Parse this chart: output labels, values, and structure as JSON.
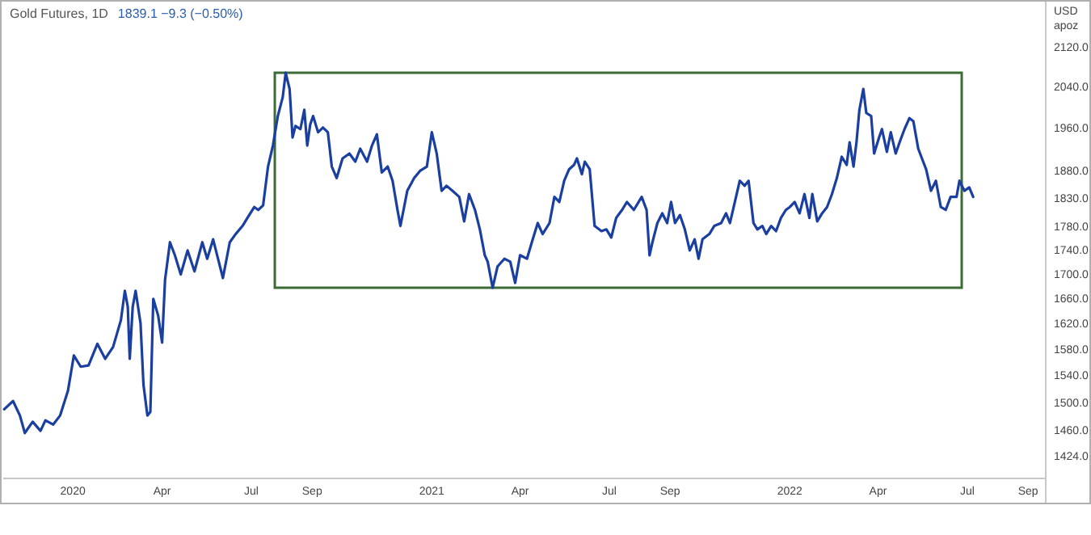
{
  "chart_data": {
    "type": "line",
    "title": "Gold Futures, 1D",
    "subtitle": "1839.1  −9.3 (−0.50%)",
    "ylabel": "USD\napoz",
    "log": true,
    "xlim": [
      "2019-10-22",
      "2022-09-19"
    ],
    "ylim": [
      1393,
      2212
    ],
    "xticks": [
      {
        "value": "2020-01-01",
        "label": "2020"
      },
      {
        "value": "2020-04-01",
        "label": "Apr"
      },
      {
        "value": "2020-07-01",
        "label": "Jul"
      },
      {
        "value": "2020-09-01",
        "label": "Sep"
      },
      {
        "value": "2021-01-01",
        "label": "2021"
      },
      {
        "value": "2021-04-01",
        "label": "Apr"
      },
      {
        "value": "2021-07-01",
        "label": "Jul"
      },
      {
        "value": "2021-09-01",
        "label": "Sep"
      },
      {
        "value": "2022-01-01",
        "label": "2022"
      },
      {
        "value": "2022-04-01",
        "label": "Apr"
      },
      {
        "value": "2022-07-01",
        "label": "Jul"
      },
      {
        "value": "2022-09-01",
        "label": "Sep"
      }
    ],
    "yticks": [
      {
        "value": 1424,
        "label": "1424.0"
      },
      {
        "value": 1460,
        "label": "1460.0"
      },
      {
        "value": 1500,
        "label": "1500.0"
      },
      {
        "value": 1540,
        "label": "1540.0"
      },
      {
        "value": 1580,
        "label": "1580.0"
      },
      {
        "value": 1620,
        "label": "1620.0"
      },
      {
        "value": 1660,
        "label": "1660.0"
      },
      {
        "value": 1700,
        "label": "1700.0"
      },
      {
        "value": 1740,
        "label": "1740.0"
      },
      {
        "value": 1780,
        "label": "1780.0"
      },
      {
        "value": 1830,
        "label": "1830.0"
      },
      {
        "value": 1880,
        "label": "1880.0"
      },
      {
        "value": 1960,
        "label": "1960.0"
      },
      {
        "value": 2040,
        "label": "2040.0"
      },
      {
        "value": 2120,
        "label": "2120.0"
      }
    ],
    "grid": false,
    "marker": "none",
    "line_style": "solid",
    "x": [
      "2019-10-23",
      "2019-11-01",
      "2019-11-08",
      "2019-11-13",
      "2019-11-21",
      "2019-11-29",
      "2019-12-04",
      "2019-12-12",
      "2019-12-19",
      "2019-12-27",
      "2020-01-02",
      "2020-01-09",
      "2020-01-17",
      "2020-01-26",
      "2020-02-03",
      "2020-02-11",
      "2020-02-19",
      "2020-02-23",
      "2020-02-26",
      "2020-02-28",
      "2020-03-02",
      "2020-03-05",
      "2020-03-10",
      "2020-03-13",
      "2020-03-17",
      "2020-03-20",
      "2020-03-23",
      "2020-03-28",
      "2020-04-01",
      "2020-04-04",
      "2020-04-09",
      "2020-04-14",
      "2020-04-20",
      "2020-04-27",
      "2020-05-04",
      "2020-05-12",
      "2020-05-17",
      "2020-05-23",
      "2020-05-28",
      "2020-06-02",
      "2020-06-09",
      "2020-06-15",
      "2020-06-22",
      "2020-06-27",
      "2020-07-04",
      "2020-07-08",
      "2020-07-13",
      "2020-07-18",
      "2020-07-23",
      "2020-07-28",
      "2020-08-02",
      "2020-08-05",
      "2020-08-09",
      "2020-08-12",
      "2020-08-15",
      "2020-08-20",
      "2020-08-24",
      "2020-08-27",
      "2020-08-30",
      "2020-09-02",
      "2020-09-07",
      "2020-09-12",
      "2020-09-17",
      "2020-09-21",
      "2020-09-26",
      "2020-10-02",
      "2020-10-09",
      "2020-10-15",
      "2020-10-20",
      "2020-10-27",
      "2020-11-01",
      "2020-11-06",
      "2020-11-11",
      "2020-11-17",
      "2020-11-22",
      "2020-11-27",
      "2020-11-30",
      "2020-12-07",
      "2020-12-14",
      "2020-12-20",
      "2020-12-27",
      "2021-01-01",
      "2021-01-06",
      "2021-01-11",
      "2021-01-16",
      "2021-01-22",
      "2021-01-29",
      "2021-02-03",
      "2021-02-08",
      "2021-02-14",
      "2021-02-19",
      "2021-02-24",
      "2021-02-27",
      "2021-03-04",
      "2021-03-09",
      "2021-03-16",
      "2021-03-22",
      "2021-03-27",
      "2021-04-01",
      "2021-04-08",
      "2021-04-13",
      "2021-04-19",
      "2021-04-24",
      "2021-05-01",
      "2021-05-06",
      "2021-05-11",
      "2021-05-16",
      "2021-05-21",
      "2021-05-26",
      "2021-05-29",
      "2021-06-03",
      "2021-06-06",
      "2021-06-11",
      "2021-06-16",
      "2021-06-23",
      "2021-06-28",
      "2021-07-03",
      "2021-07-08",
      "2021-07-14",
      "2021-07-19",
      "2021-07-26",
      "2021-08-03",
      "2021-08-08",
      "2021-08-11",
      "2021-08-14",
      "2021-08-19",
      "2021-08-24",
      "2021-08-29",
      "2021-09-02",
      "2021-09-06",
      "2021-09-11",
      "2021-09-16",
      "2021-09-21",
      "2021-09-26",
      "2021-09-30",
      "2021-10-04",
      "2021-10-11",
      "2021-10-16",
      "2021-10-23",
      "2021-10-28",
      "2021-11-01",
      "2021-11-06",
      "2021-11-11",
      "2021-11-16",
      "2021-11-20",
      "2021-11-25",
      "2021-11-29",
      "2021-12-04",
      "2021-12-08",
      "2021-12-13",
      "2021-12-18",
      "2021-12-23",
      "2021-12-28",
      "2022-01-01",
      "2022-01-06",
      "2022-01-11",
      "2022-01-16",
      "2022-01-21",
      "2022-01-24",
      "2022-01-29",
      "2022-02-03",
      "2022-02-08",
      "2022-02-13",
      "2022-02-18",
      "2022-02-23",
      "2022-02-28",
      "2022-03-03",
      "2022-03-07",
      "2022-03-10",
      "2022-03-13",
      "2022-03-17",
      "2022-03-20",
      "2022-03-25",
      "2022-03-28",
      "2022-04-02",
      "2022-04-05",
      "2022-04-10",
      "2022-04-14",
      "2022-04-19",
      "2022-04-23",
      "2022-04-28",
      "2022-05-03",
      "2022-05-07",
      "2022-05-12",
      "2022-05-17",
      "2022-05-20",
      "2022-05-25",
      "2022-05-30",
      "2022-06-04",
      "2022-06-09",
      "2022-06-14",
      "2022-06-20",
      "2022-06-23",
      "2022-06-28",
      "2022-07-03",
      "2022-07-07"
    ],
    "series": [
      {
        "color": "#1a3fa0",
        "values": [
          1490,
          1502,
          1481,
          1456,
          1472,
          1459,
          1474,
          1468,
          1481,
          1517,
          1570,
          1553,
          1555,
          1588,
          1565,
          1583,
          1625,
          1672,
          1646,
          1565,
          1646,
          1672,
          1620,
          1526,
          1481,
          1486,
          1659,
          1632,
          1590,
          1690,
          1753,
          1731,
          1699,
          1739,
          1704,
          1753,
          1725,
          1758,
          1725,
          1693,
          1753,
          1767,
          1781,
          1795,
          1814,
          1809,
          1817,
          1887,
          1926,
          1982,
          2019,
          2067,
          2035,
          1941,
          1963,
          1957,
          1994,
          1926,
          1966,
          1982,
          1951,
          1960,
          1951,
          1887,
          1866,
          1902,
          1911,
          1896,
          1920,
          1896,
          1926,
          1947,
          1876,
          1887,
          1861,
          1809,
          1781,
          1843,
          1866,
          1879,
          1887,
          1951,
          1911,
          1843,
          1852,
          1843,
          1832,
          1789,
          1837,
          1809,
          1775,
          1731,
          1720,
          1677,
          1712,
          1725,
          1720,
          1685,
          1731,
          1725,
          1753,
          1786,
          1767,
          1786,
          1832,
          1823,
          1861,
          1882,
          1890,
          1902,
          1873,
          1896,
          1882,
          1781,
          1772,
          1775,
          1761,
          1795,
          1809,
          1823,
          1809,
          1832,
          1809,
          1731,
          1753,
          1786,
          1803,
          1786,
          1823,
          1786,
          1800,
          1775,
          1739,
          1758,
          1725,
          1758,
          1767,
          1781,
          1786,
          1803,
          1786,
          1823,
          1861,
          1852,
          1861,
          1786,
          1775,
          1781,
          1767,
          1781,
          1772,
          1795,
          1809,
          1814,
          1823,
          1803,
          1837,
          1795,
          1837,
          1789,
          1803,
          1814,
          1837,
          1866,
          1905,
          1890,
          1932,
          1887,
          1932,
          1994,
          2035,
          1988,
          1982,
          1911,
          1941,
          1957,
          1914,
          1951,
          1911,
          1932,
          1957,
          1978,
          1972,
          1920,
          1896,
          1882,
          1843,
          1861,
          1814,
          1809,
          1832,
          1832,
          1861,
          1843,
          1849,
          1832
        ]
      }
    ]
  }
}
